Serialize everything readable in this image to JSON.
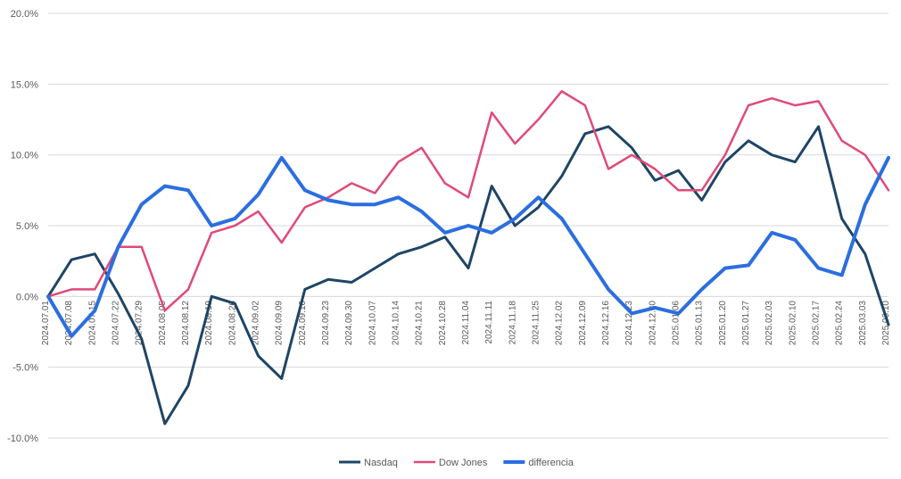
{
  "chart_data": {
    "type": "line",
    "title": "",
    "xlabel": "",
    "ylabel": "",
    "ylim": [
      -10,
      20
    ],
    "yticks": [
      "20.0%",
      "15.0%",
      "10.0%",
      "5.0%",
      "0.0%",
      "-5.0%",
      "-10.0%"
    ],
    "grid": "horizontal",
    "legend_position": "bottom",
    "x": [
      "2024.07.01",
      "2024.07.08",
      "2024.07.15",
      "2024.07.22",
      "2024.07.29",
      "2024.08.05",
      "2024.08.12",
      "2024.08.19",
      "2024.08.26",
      "2024.09.02",
      "2024.09.09",
      "2024.09.16",
      "2024.09.23",
      "2024.09.30",
      "2024.10.07",
      "2024.10.14",
      "2024.10.21",
      "2024.10.28",
      "2024.11.04",
      "2024.11.11",
      "2024.11.18",
      "2024.11.25",
      "2024.12.02",
      "2024.12.09",
      "2024.12.16",
      "2024.12.23",
      "2024.12.30",
      "2025.01.06",
      "2025.01.13",
      "2025.01.20",
      "2025.01.27",
      "2025.02.03",
      "2025.02.10",
      "2025.02.17",
      "2025.02.24",
      "2025.03.03",
      "2025.03.10"
    ],
    "series": [
      {
        "name": "Nasdaq",
        "color": "#1e4565",
        "width": 3,
        "values": [
          0.0,
          2.6,
          3.0,
          0.2,
          -3.0,
          -9.0,
          -6.3,
          0.0,
          -0.5,
          -4.2,
          -5.8,
          0.5,
          1.2,
          1.0,
          2.0,
          3.0,
          3.5,
          4.2,
          2.0,
          7.8,
          5.0,
          6.3,
          8.5,
          11.5,
          12.0,
          10.5,
          8.2,
          8.9,
          6.8,
          9.5,
          11.0,
          10.0,
          9.5,
          12.0,
          5.5,
          3.0,
          -2.0
        ]
      },
      {
        "name": "Dow Jones",
        "color": "#e04a79",
        "width": 2.5,
        "values": [
          0.0,
          0.5,
          0.5,
          3.5,
          3.5,
          -1.0,
          0.5,
          4.5,
          5.0,
          6.0,
          3.8,
          6.3,
          7.0,
          8.0,
          7.3,
          9.5,
          10.5,
          8.0,
          7.0,
          13.0,
          10.8,
          12.5,
          14.5,
          13.5,
          9.0,
          10.0,
          9.0,
          7.5,
          7.5,
          10.0,
          13.5,
          14.0,
          13.5,
          13.8,
          11.0,
          10.0,
          7.5
        ]
      },
      {
        "name": "differencia",
        "color": "#2b6ee0",
        "width": 4,
        "values": [
          0.0,
          -2.8,
          -1.0,
          3.5,
          6.5,
          7.8,
          7.5,
          5.0,
          5.5,
          7.2,
          9.8,
          7.5,
          6.8,
          6.5,
          6.5,
          7.0,
          6.0,
          4.5,
          5.0,
          4.5,
          5.5,
          7.0,
          5.5,
          3.0,
          0.5,
          -1.2,
          -0.8,
          -1.2,
          0.5,
          2.0,
          2.2,
          4.5,
          4.0,
          2.0,
          1.5,
          6.5,
          9.8
        ]
      }
    ]
  }
}
